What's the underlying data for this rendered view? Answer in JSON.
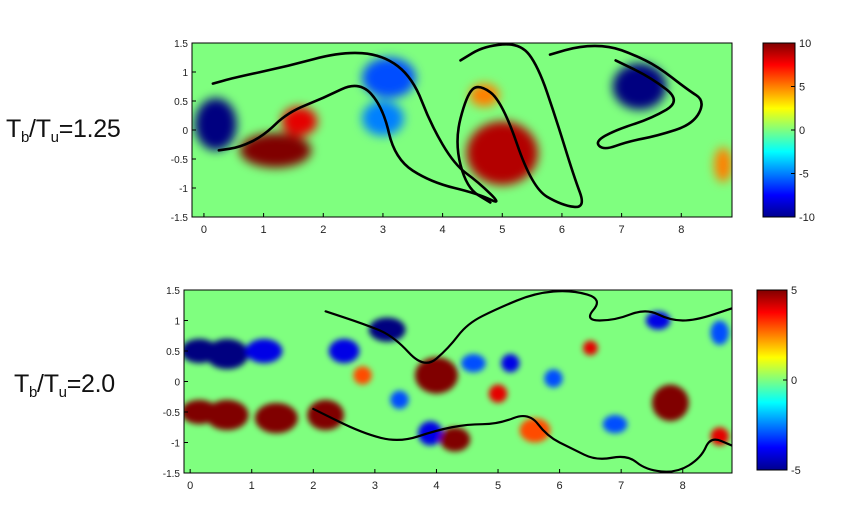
{
  "figure": {
    "panels": [
      {
        "label": {
          "lhs_main": "T",
          "lhs_sub": "b",
          "slash": "/",
          "rhs_main": "T",
          "rhs_sub": "u",
          "eq": "=1.25"
        },
        "xticks": [
          "0",
          "1",
          "2",
          "3",
          "4",
          "5",
          "6",
          "7",
          "8"
        ],
        "yticks": [
          "1.5",
          "1",
          "0.5",
          "0",
          "-0.5",
          "-1",
          "-1.5"
        ],
        "colorbar_ticks": [
          "10",
          "5",
          "0",
          "-5",
          "-10"
        ]
      },
      {
        "label": {
          "lhs_main": "T",
          "lhs_sub": "b",
          "slash": "/",
          "rhs_main": "T",
          "rhs_sub": "u",
          "eq": "=2.0"
        },
        "xticks": [
          "0",
          "1",
          "2",
          "3",
          "4",
          "5",
          "6",
          "7",
          "8"
        ],
        "yticks": [
          "1.5",
          "1",
          "0.5",
          "0",
          "-0.5",
          "-1",
          "-1.5"
        ],
        "colorbar_ticks": [
          "5",
          "0",
          "-5"
        ]
      }
    ]
  },
  "chart_data": [
    {
      "type": "heatmap",
      "title": "",
      "xlabel": "",
      "ylabel": "",
      "xlim": [
        -0.2,
        8.85
      ],
      "ylim": [
        -1.5,
        1.5
      ],
      "xticks": [
        0,
        1,
        2,
        3,
        4,
        5,
        6,
        7,
        8
      ],
      "yticks": [
        1.5,
        1,
        0.5,
        0,
        -0.5,
        -1,
        -1.5
      ],
      "colorbar": {
        "min": -10,
        "max": 10,
        "ticks": [
          10,
          5,
          0,
          -5,
          -10
        ],
        "colormap": "jet"
      },
      "background_value": 0,
      "blobs": [
        {
          "x": 0.2,
          "y": 0.1,
          "rx": 0.35,
          "ry": 0.45,
          "value": -10
        },
        {
          "x": 1.2,
          "y": -0.35,
          "rx": 0.6,
          "ry": 0.3,
          "value": 10
        },
        {
          "x": 1.6,
          "y": 0.15,
          "rx": 0.3,
          "ry": 0.25,
          "value": 8
        },
        {
          "x": 3.1,
          "y": 0.9,
          "rx": 0.45,
          "ry": 0.35,
          "value": -6
        },
        {
          "x": 3.0,
          "y": 0.2,
          "rx": 0.35,
          "ry": 0.3,
          "value": -5
        },
        {
          "x": 5.0,
          "y": -0.4,
          "rx": 0.6,
          "ry": 0.55,
          "value": 9
        },
        {
          "x": 4.7,
          "y": 0.6,
          "rx": 0.25,
          "ry": 0.2,
          "value": 5
        },
        {
          "x": 7.3,
          "y": 0.75,
          "rx": 0.45,
          "ry": 0.4,
          "value": -10
        },
        {
          "x": 8.7,
          "y": -0.6,
          "rx": 0.15,
          "ry": 0.3,
          "value": 5
        }
      ],
      "contours": [
        [
          [
            0.15,
            0.8
          ],
          [
            0.5,
            0.9
          ],
          [
            1.4,
            1.1
          ],
          [
            2.3,
            1.35
          ],
          [
            3.0,
            1.3
          ],
          [
            3.5,
            0.9
          ],
          [
            3.8,
            0.1
          ],
          [
            4.2,
            -0.6
          ],
          [
            4.6,
            -0.9
          ],
          [
            5.0,
            -1.3
          ],
          [
            4.6,
            -1.1
          ],
          [
            3.8,
            -0.9
          ],
          [
            3.2,
            -0.5
          ],
          [
            3.0,
            0.4
          ],
          [
            2.6,
            0.85
          ],
          [
            2.0,
            0.55
          ],
          [
            1.4,
            0.3
          ],
          [
            1.0,
            -0.1
          ],
          [
            0.6,
            -0.3
          ],
          [
            0.25,
            -0.35
          ]
        ],
        [
          [
            4.3,
            1.2
          ],
          [
            4.7,
            1.45
          ],
          [
            5.3,
            1.5
          ],
          [
            5.6,
            1.1
          ],
          [
            5.9,
            0.2
          ],
          [
            6.2,
            -0.8
          ],
          [
            6.4,
            -1.35
          ],
          [
            6.0,
            -1.3
          ],
          [
            5.5,
            -1.0
          ],
          [
            5.0,
            0.5
          ],
          [
            4.6,
            0.8
          ],
          [
            4.4,
            0.6
          ],
          [
            4.2,
            -0.2
          ],
          [
            4.4,
            -1.0
          ],
          [
            4.8,
            -1.25
          ]
        ],
        [
          [
            5.8,
            1.3
          ],
          [
            6.3,
            1.45
          ],
          [
            6.8,
            1.45
          ],
          [
            7.2,
            1.3
          ],
          [
            7.6,
            1.1
          ],
          [
            8.1,
            0.7
          ],
          [
            8.4,
            0.5
          ],
          [
            8.2,
            0.1
          ],
          [
            7.6,
            -0.1
          ],
          [
            7.1,
            -0.2
          ],
          [
            6.7,
            -0.35
          ],
          [
            6.55,
            -0.2
          ],
          [
            6.9,
            0.0
          ],
          [
            7.5,
            0.2
          ],
          [
            8.0,
            0.5
          ],
          [
            7.5,
            0.9
          ],
          [
            6.9,
            1.2
          ]
        ]
      ]
    },
    {
      "type": "heatmap",
      "title": "",
      "xlabel": "",
      "ylabel": "",
      "xlim": [
        -0.1,
        8.8
      ],
      "ylim": [
        -1.5,
        1.5
      ],
      "xticks": [
        0,
        1,
        2,
        3,
        4,
        5,
        6,
        7,
        8
      ],
      "yticks": [
        1.5,
        1,
        0.5,
        0,
        -0.5,
        -1,
        -1.5
      ],
      "colorbar": {
        "min": -5,
        "max": 5,
        "ticks": [
          5,
          0,
          -5
        ],
        "colormap": "jet"
      },
      "background_value": 0,
      "blobs": [
        {
          "x": 0.15,
          "y": 0.5,
          "rx": 0.3,
          "ry": 0.2,
          "value": -5
        },
        {
          "x": 0.15,
          "y": -0.5,
          "rx": 0.3,
          "ry": 0.2,
          "value": 5
        },
        {
          "x": 0.6,
          "y": 0.45,
          "rx": 0.35,
          "ry": 0.25,
          "value": -5
        },
        {
          "x": 0.6,
          "y": -0.55,
          "rx": 0.35,
          "ry": 0.25,
          "value": 5
        },
        {
          "x": 1.2,
          "y": 0.5,
          "rx": 0.3,
          "ry": 0.2,
          "value": -4
        },
        {
          "x": 1.4,
          "y": -0.6,
          "rx": 0.35,
          "ry": 0.25,
          "value": 5
        },
        {
          "x": 2.2,
          "y": -0.55,
          "rx": 0.3,
          "ry": 0.25,
          "value": 5
        },
        {
          "x": 2.5,
          "y": 0.5,
          "rx": 0.25,
          "ry": 0.2,
          "value": -4
        },
        {
          "x": 3.2,
          "y": 0.85,
          "rx": 0.3,
          "ry": 0.2,
          "value": -5
        },
        {
          "x": 2.8,
          "y": 0.1,
          "rx": 0.15,
          "ry": 0.15,
          "value": 3
        },
        {
          "x": 3.4,
          "y": -0.3,
          "rx": 0.15,
          "ry": 0.15,
          "value": -3
        },
        {
          "x": 4.0,
          "y": 0.1,
          "rx": 0.35,
          "ry": 0.3,
          "value": 5
        },
        {
          "x": 3.9,
          "y": -0.85,
          "rx": 0.2,
          "ry": 0.2,
          "value": -4
        },
        {
          "x": 4.3,
          "y": -0.95,
          "rx": 0.25,
          "ry": 0.2,
          "value": 5
        },
        {
          "x": 4.6,
          "y": 0.3,
          "rx": 0.2,
          "ry": 0.15,
          "value": -3
        },
        {
          "x": 5.2,
          "y": 0.3,
          "rx": 0.15,
          "ry": 0.15,
          "value": -4
        },
        {
          "x": 5.0,
          "y": -0.2,
          "rx": 0.15,
          "ry": 0.15,
          "value": 4
        },
        {
          "x": 5.6,
          "y": -0.8,
          "rx": 0.25,
          "ry": 0.2,
          "value": 3
        },
        {
          "x": 5.9,
          "y": 0.05,
          "rx": 0.15,
          "ry": 0.15,
          "value": -3
        },
        {
          "x": 6.5,
          "y": 0.55,
          "rx": 0.12,
          "ry": 0.12,
          "value": 4
        },
        {
          "x": 6.9,
          "y": -0.7,
          "rx": 0.2,
          "ry": 0.15,
          "value": -3
        },
        {
          "x": 7.8,
          "y": -0.35,
          "rx": 0.3,
          "ry": 0.3,
          "value": 5
        },
        {
          "x": 7.6,
          "y": 1.0,
          "rx": 0.2,
          "ry": 0.15,
          "value": -4
        },
        {
          "x": 8.6,
          "y": 0.8,
          "rx": 0.15,
          "ry": 0.2,
          "value": -3
        },
        {
          "x": 8.6,
          "y": -0.9,
          "rx": 0.15,
          "ry": 0.15,
          "value": 4
        }
      ],
      "contours": [
        [
          [
            2.2,
            1.15
          ],
          [
            2.8,
            0.95
          ],
          [
            3.3,
            0.75
          ],
          [
            3.8,
            0.2
          ],
          [
            4.2,
            0.55
          ],
          [
            4.5,
            0.95
          ],
          [
            5.0,
            1.2
          ],
          [
            5.6,
            1.45
          ],
          [
            6.2,
            1.5
          ],
          [
            6.7,
            1.35
          ],
          [
            6.4,
            1.0
          ],
          [
            6.9,
            1.0
          ],
          [
            7.4,
            1.2
          ],
          [
            7.8,
            1.0
          ],
          [
            8.2,
            1.0
          ],
          [
            8.8,
            1.2
          ]
        ],
        [
          [
            2.0,
            -0.45
          ],
          [
            2.8,
            -0.85
          ],
          [
            3.4,
            -1.0
          ],
          [
            4.0,
            -0.8
          ],
          [
            4.5,
            -0.7
          ],
          [
            5.0,
            -0.7
          ],
          [
            5.5,
            -0.5
          ],
          [
            5.8,
            -0.9
          ],
          [
            6.2,
            -1.1
          ],
          [
            6.6,
            -1.3
          ],
          [
            7.1,
            -1.2
          ],
          [
            7.4,
            -1.45
          ],
          [
            7.9,
            -1.5
          ],
          [
            8.3,
            -1.25
          ],
          [
            8.45,
            -0.9
          ],
          [
            8.8,
            -1.05
          ]
        ]
      ]
    }
  ]
}
